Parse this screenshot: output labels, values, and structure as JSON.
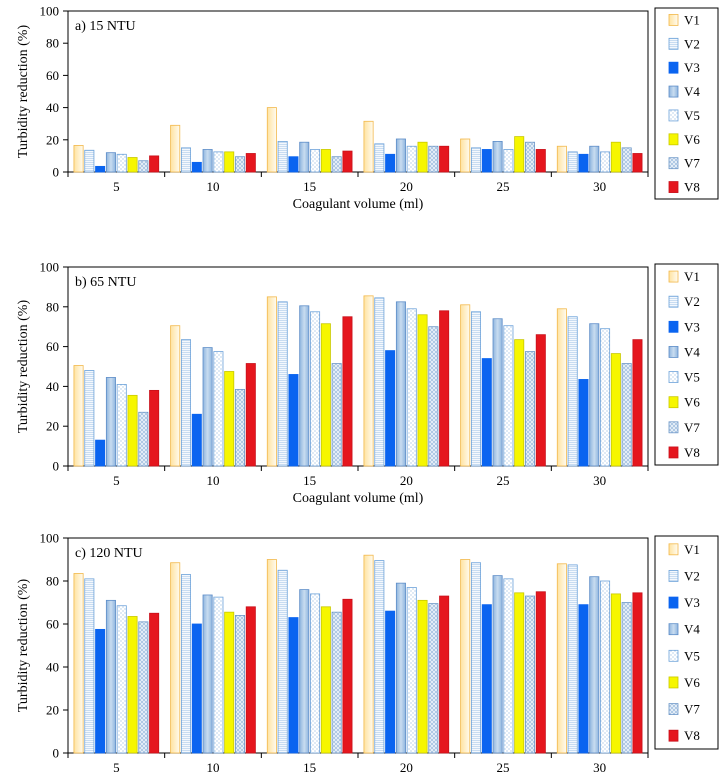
{
  "colors": {
    "V1": "#FFE9B0",
    "V2": "#E6F0FA",
    "V3": "#0A64F0",
    "V4": "#9EC0E2",
    "V5": "#F0F6FC",
    "V6": "#F6F600",
    "V7": "#D4E2F0",
    "V8": "#E5161E"
  },
  "chart_data": [
    {
      "type": "bar",
      "title": "a) 15 NTU",
      "xlabel": "Coagulant volume (ml)",
      "ylabel": "Turbidity reduction (%)",
      "ylim": [
        0,
        100
      ],
      "yticks": [
        0,
        20,
        40,
        60,
        80,
        100
      ],
      "categories": [
        "5",
        "10",
        "15",
        "20",
        "25",
        "30"
      ],
      "series": [
        {
          "name": "V1",
          "values": [
            16.5,
            29,
            40,
            31.5,
            20.5,
            16
          ]
        },
        {
          "name": "V2",
          "values": [
            13.5,
            15,
            19,
            17.5,
            15,
            12.5
          ]
        },
        {
          "name": "V3",
          "values": [
            3.5,
            6,
            9.5,
            11,
            14,
            11
          ]
        },
        {
          "name": "V4",
          "values": [
            12,
            14,
            18.5,
            20.5,
            19,
            16
          ]
        },
        {
          "name": "V5",
          "values": [
            11,
            12.5,
            14,
            16,
            14,
            12.5
          ]
        },
        {
          "name": "V6",
          "values": [
            9,
            12.5,
            14,
            18.5,
            22,
            18.5
          ]
        },
        {
          "name": "V7",
          "values": [
            7,
            9.5,
            9.5,
            16,
            18.5,
            15
          ]
        },
        {
          "name": "V8",
          "values": [
            10,
            11.5,
            13,
            16,
            14,
            11.5
          ]
        }
      ]
    },
    {
      "type": "bar",
      "title": "b) 65 NTU",
      "xlabel": "Coagulant volume (ml)",
      "ylabel": "Turbidity reduction (%)",
      "ylim": [
        0,
        100
      ],
      "yticks": [
        0,
        20,
        40,
        60,
        80,
        100
      ],
      "categories": [
        "5",
        "10",
        "15",
        "20",
        "25",
        "30"
      ],
      "series": [
        {
          "name": "V1",
          "values": [
            50.5,
            70.5,
            85,
            85.5,
            81,
            79
          ]
        },
        {
          "name": "V2",
          "values": [
            48,
            63.5,
            82.5,
            84.5,
            77.5,
            75
          ]
        },
        {
          "name": "V3",
          "values": [
            13,
            26,
            46,
            58,
            54,
            43.5
          ]
        },
        {
          "name": "V4",
          "values": [
            44.5,
            59.5,
            80.5,
            82.5,
            74,
            71.5
          ]
        },
        {
          "name": "V5",
          "values": [
            41,
            57.5,
            77.5,
            79,
            70.5,
            69
          ]
        },
        {
          "name": "V6",
          "values": [
            35.5,
            47.5,
            71.5,
            76,
            63.5,
            56.5
          ]
        },
        {
          "name": "V7",
          "values": [
            27,
            38.5,
            51.5,
            70,
            57.5,
            51.5
          ]
        },
        {
          "name": "V8",
          "values": [
            38,
            51.5,
            75,
            78,
            66,
            63.5
          ]
        }
      ]
    },
    {
      "type": "bar",
      "title": "c) 120 NTU",
      "xlabel": "Coagulant volume (ml)",
      "ylabel": "Turbidity reduction (%)",
      "ylim": [
        0,
        100
      ],
      "yticks": [
        0,
        20,
        40,
        60,
        80,
        100
      ],
      "categories": [
        "5",
        "10",
        "15",
        "20",
        "25",
        "30"
      ],
      "series": [
        {
          "name": "V1",
          "values": [
            83.5,
            88.5,
            90,
            92,
            90,
            88
          ]
        },
        {
          "name": "V2",
          "values": [
            81,
            83,
            85,
            89.5,
            88.5,
            87.5
          ]
        },
        {
          "name": "V3",
          "values": [
            57.5,
            60,
            63,
            66,
            69,
            69
          ]
        },
        {
          "name": "V4",
          "values": [
            71,
            73.5,
            76,
            79,
            82.5,
            82
          ]
        },
        {
          "name": "V5",
          "values": [
            68.5,
            72.5,
            74,
            77,
            81,
            80
          ]
        },
        {
          "name": "V6",
          "values": [
            63.5,
            65.5,
            68,
            71,
            74.5,
            74
          ]
        },
        {
          "name": "V7",
          "values": [
            61,
            64,
            65.5,
            69.5,
            73,
            70
          ]
        },
        {
          "name": "V8",
          "values": [
            65,
            68,
            71.5,
            73,
            75,
            74.5
          ]
        }
      ]
    }
  ]
}
